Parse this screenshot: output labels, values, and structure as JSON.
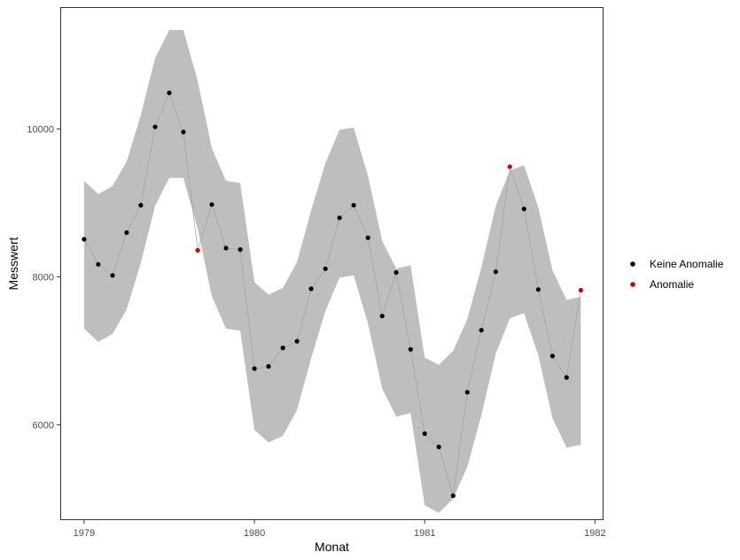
{
  "chart_data": {
    "type": "scatter",
    "xlabel": "Monat",
    "ylabel": "Messwert",
    "x_ticks": [
      1979,
      1980,
      1981,
      1982
    ],
    "y_ticks": [
      6000,
      8000,
      10000
    ],
    "xlim": [
      1978.86,
      1982.05
    ],
    "ylim": [
      4710,
      11650
    ],
    "grid": false,
    "legend_position": "right",
    "colors": {
      "normal": "#000000",
      "anomaly": "#cc0000",
      "band": "#bebebe",
      "line": "#9a9a9a"
    },
    "legend": [
      {
        "label": "Keine Anomalie",
        "color": "#000000"
      },
      {
        "label": "Anomalie",
        "color": "#cc0000"
      }
    ],
    "x": [
      1979.0,
      1979.083,
      1979.167,
      1979.25,
      1979.333,
      1979.417,
      1979.5,
      1979.583,
      1979.667,
      1979.75,
      1979.833,
      1979.917,
      1980.0,
      1980.083,
      1980.167,
      1980.25,
      1980.333,
      1980.417,
      1980.5,
      1980.583,
      1980.667,
      1980.75,
      1980.833,
      1980.917,
      1981.0,
      1981.083,
      1981.167,
      1981.25,
      1981.333,
      1981.417,
      1981.5,
      1981.583,
      1981.667,
      1981.75,
      1981.833,
      1981.917
    ],
    "values": [
      8510,
      8170,
      8020,
      8600,
      8970,
      10030,
      10490,
      9960,
      8360,
      8980,
      8390,
      8370,
      6760,
      6790,
      7040,
      7130,
      7840,
      8110,
      8800,
      8970,
      8530,
      7470,
      8060,
      7020,
      5880,
      5700,
      5040,
      6440,
      7280,
      8070,
      9490,
      8920,
      7830,
      6930,
      6640,
      7820
    ],
    "anomaly": [
      false,
      false,
      false,
      false,
      false,
      false,
      false,
      false,
      true,
      false,
      false,
      false,
      false,
      false,
      false,
      false,
      false,
      false,
      false,
      false,
      false,
      false,
      false,
      false,
      false,
      false,
      false,
      false,
      false,
      false,
      true,
      false,
      false,
      false,
      false,
      true
    ],
    "band_upper": [
      9300,
      9120,
      9230,
      9560,
      10190,
      10960,
      11340,
      11340,
      10650,
      9740,
      9300,
      9270,
      7930,
      7760,
      7850,
      8200,
      8900,
      9540,
      9990,
      10020,
      9370,
      8490,
      8110,
      8160,
      6910,
      6810,
      7000,
      7430,
      8130,
      8960,
      9440,
      9510,
      8940,
      8090,
      7690,
      7730
    ],
    "band_lower": [
      7300,
      7120,
      7230,
      7560,
      8190,
      8960,
      9340,
      9340,
      8650,
      7740,
      7300,
      7270,
      5930,
      5760,
      5850,
      6200,
      6900,
      7540,
      7990,
      8020,
      7370,
      6490,
      6110,
      6160,
      4910,
      4810,
      5000,
      5430,
      6130,
      6960,
      7440,
      7510,
      6940,
      6090,
      5690,
      5730
    ]
  }
}
